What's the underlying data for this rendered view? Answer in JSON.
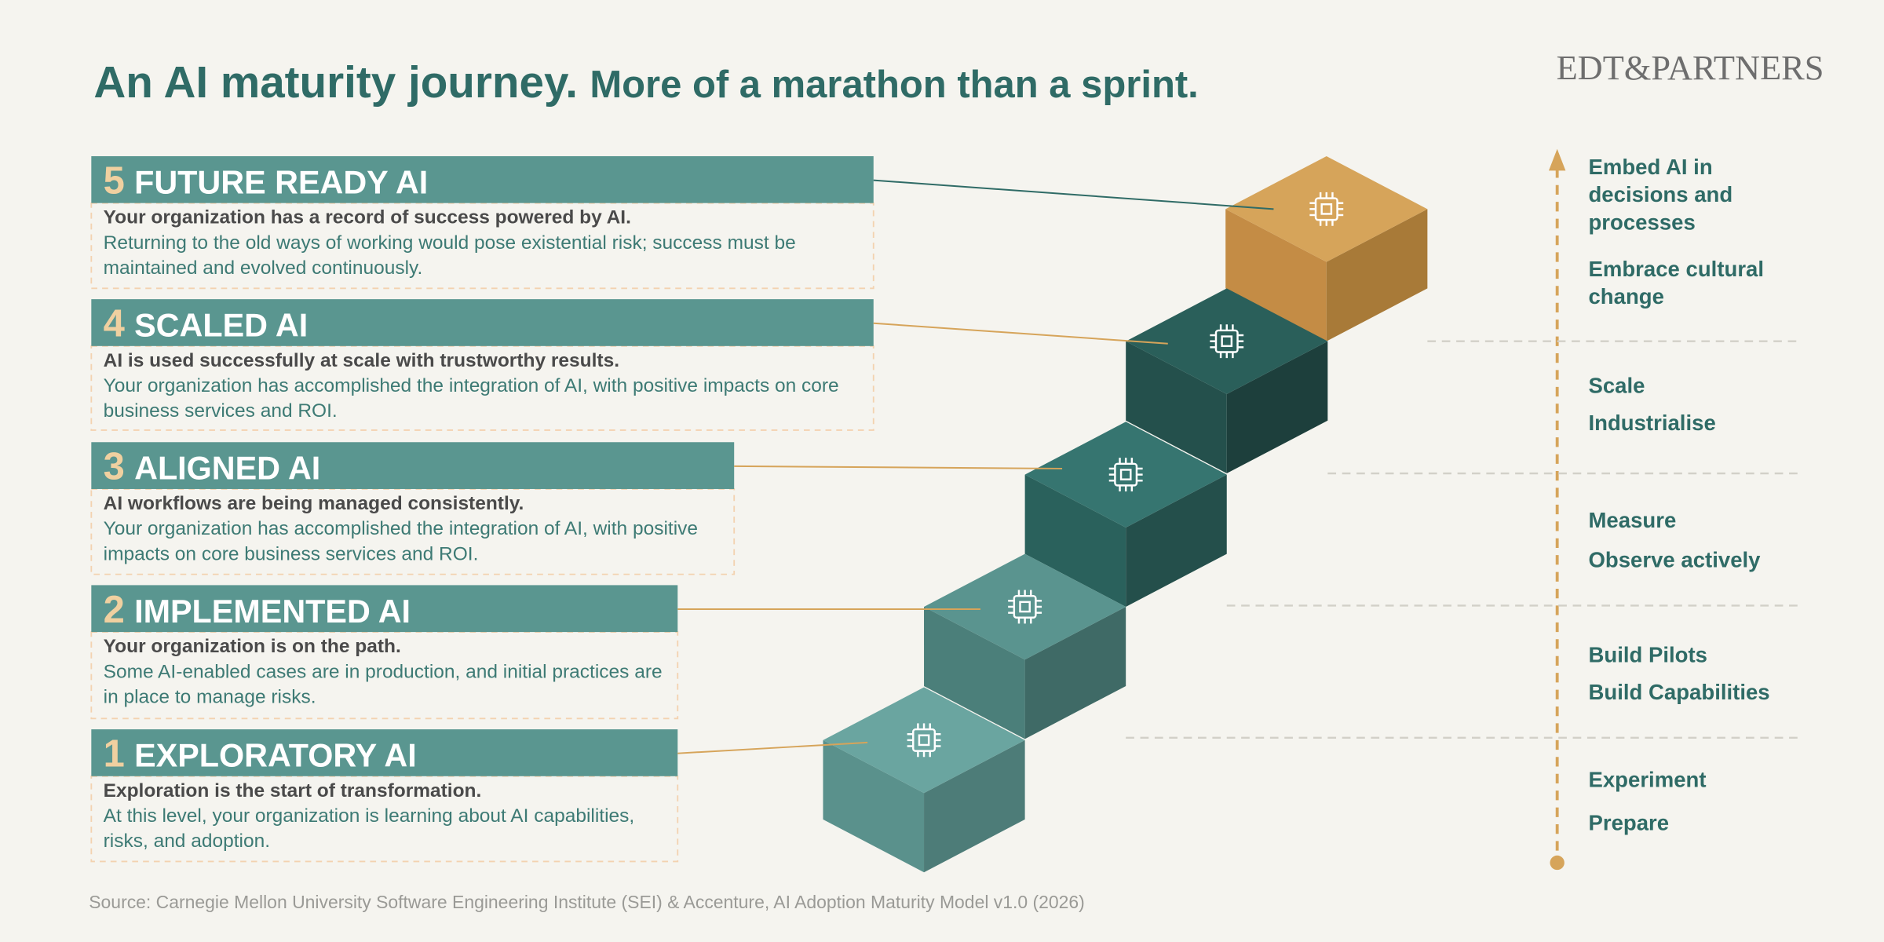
{
  "header": {
    "title": "An AI maturity journey.",
    "subtitle": "More of a marathon than a sprint.",
    "logo": "EDT&PARTNERS"
  },
  "levels": [
    {
      "number": "5",
      "name": "FUTURE READY AI",
      "headline": "Your organization has a record of success powered by AI.",
      "body": "Returning to the old ways of working would pose existential risk; success must be maintained and evolved continuously.",
      "actions": [
        "Embed AI in decisions and processes",
        "Embrace cultural change"
      ]
    },
    {
      "number": "4",
      "name": "SCALED AI",
      "headline": "AI is used successfully at scale with trustworthy results.",
      "body": "Your organization has accomplished the integration of AI, with positive impacts on core business services and ROI.",
      "actions": [
        "Scale",
        "Industrialise"
      ]
    },
    {
      "number": "3",
      "name": "ALIGNED AI",
      "headline": "AI workflows are being managed consistently.",
      "body": "Your organization has accomplished the integration of AI, with positive impacts on core business services and ROI.",
      "actions": [
        "Measure",
        "Observe actively"
      ]
    },
    {
      "number": "2",
      "name": "IMPLEMENTED AI",
      "headline": "Your organization is on the path.",
      "body": "Some AI-enabled cases are in production, and initial practices are in place to manage risks.",
      "actions": [
        "Build Pilots",
        "Build Capabilities"
      ]
    },
    {
      "number": "1",
      "name": "EXPLORATORY AI",
      "headline": "Exploration is the start of transformation.",
      "body": "At this level, your organization is learning about AI capabilities, risks, and adoption.",
      "actions": [
        "Experiment",
        "Prepare"
      ]
    }
  ],
  "footer": {
    "source": "Source: Carnegie Mellon University Software Engineering Institute (SEI) & Accenture, AI Adoption Maturity Model v1.0 (2026)"
  }
}
